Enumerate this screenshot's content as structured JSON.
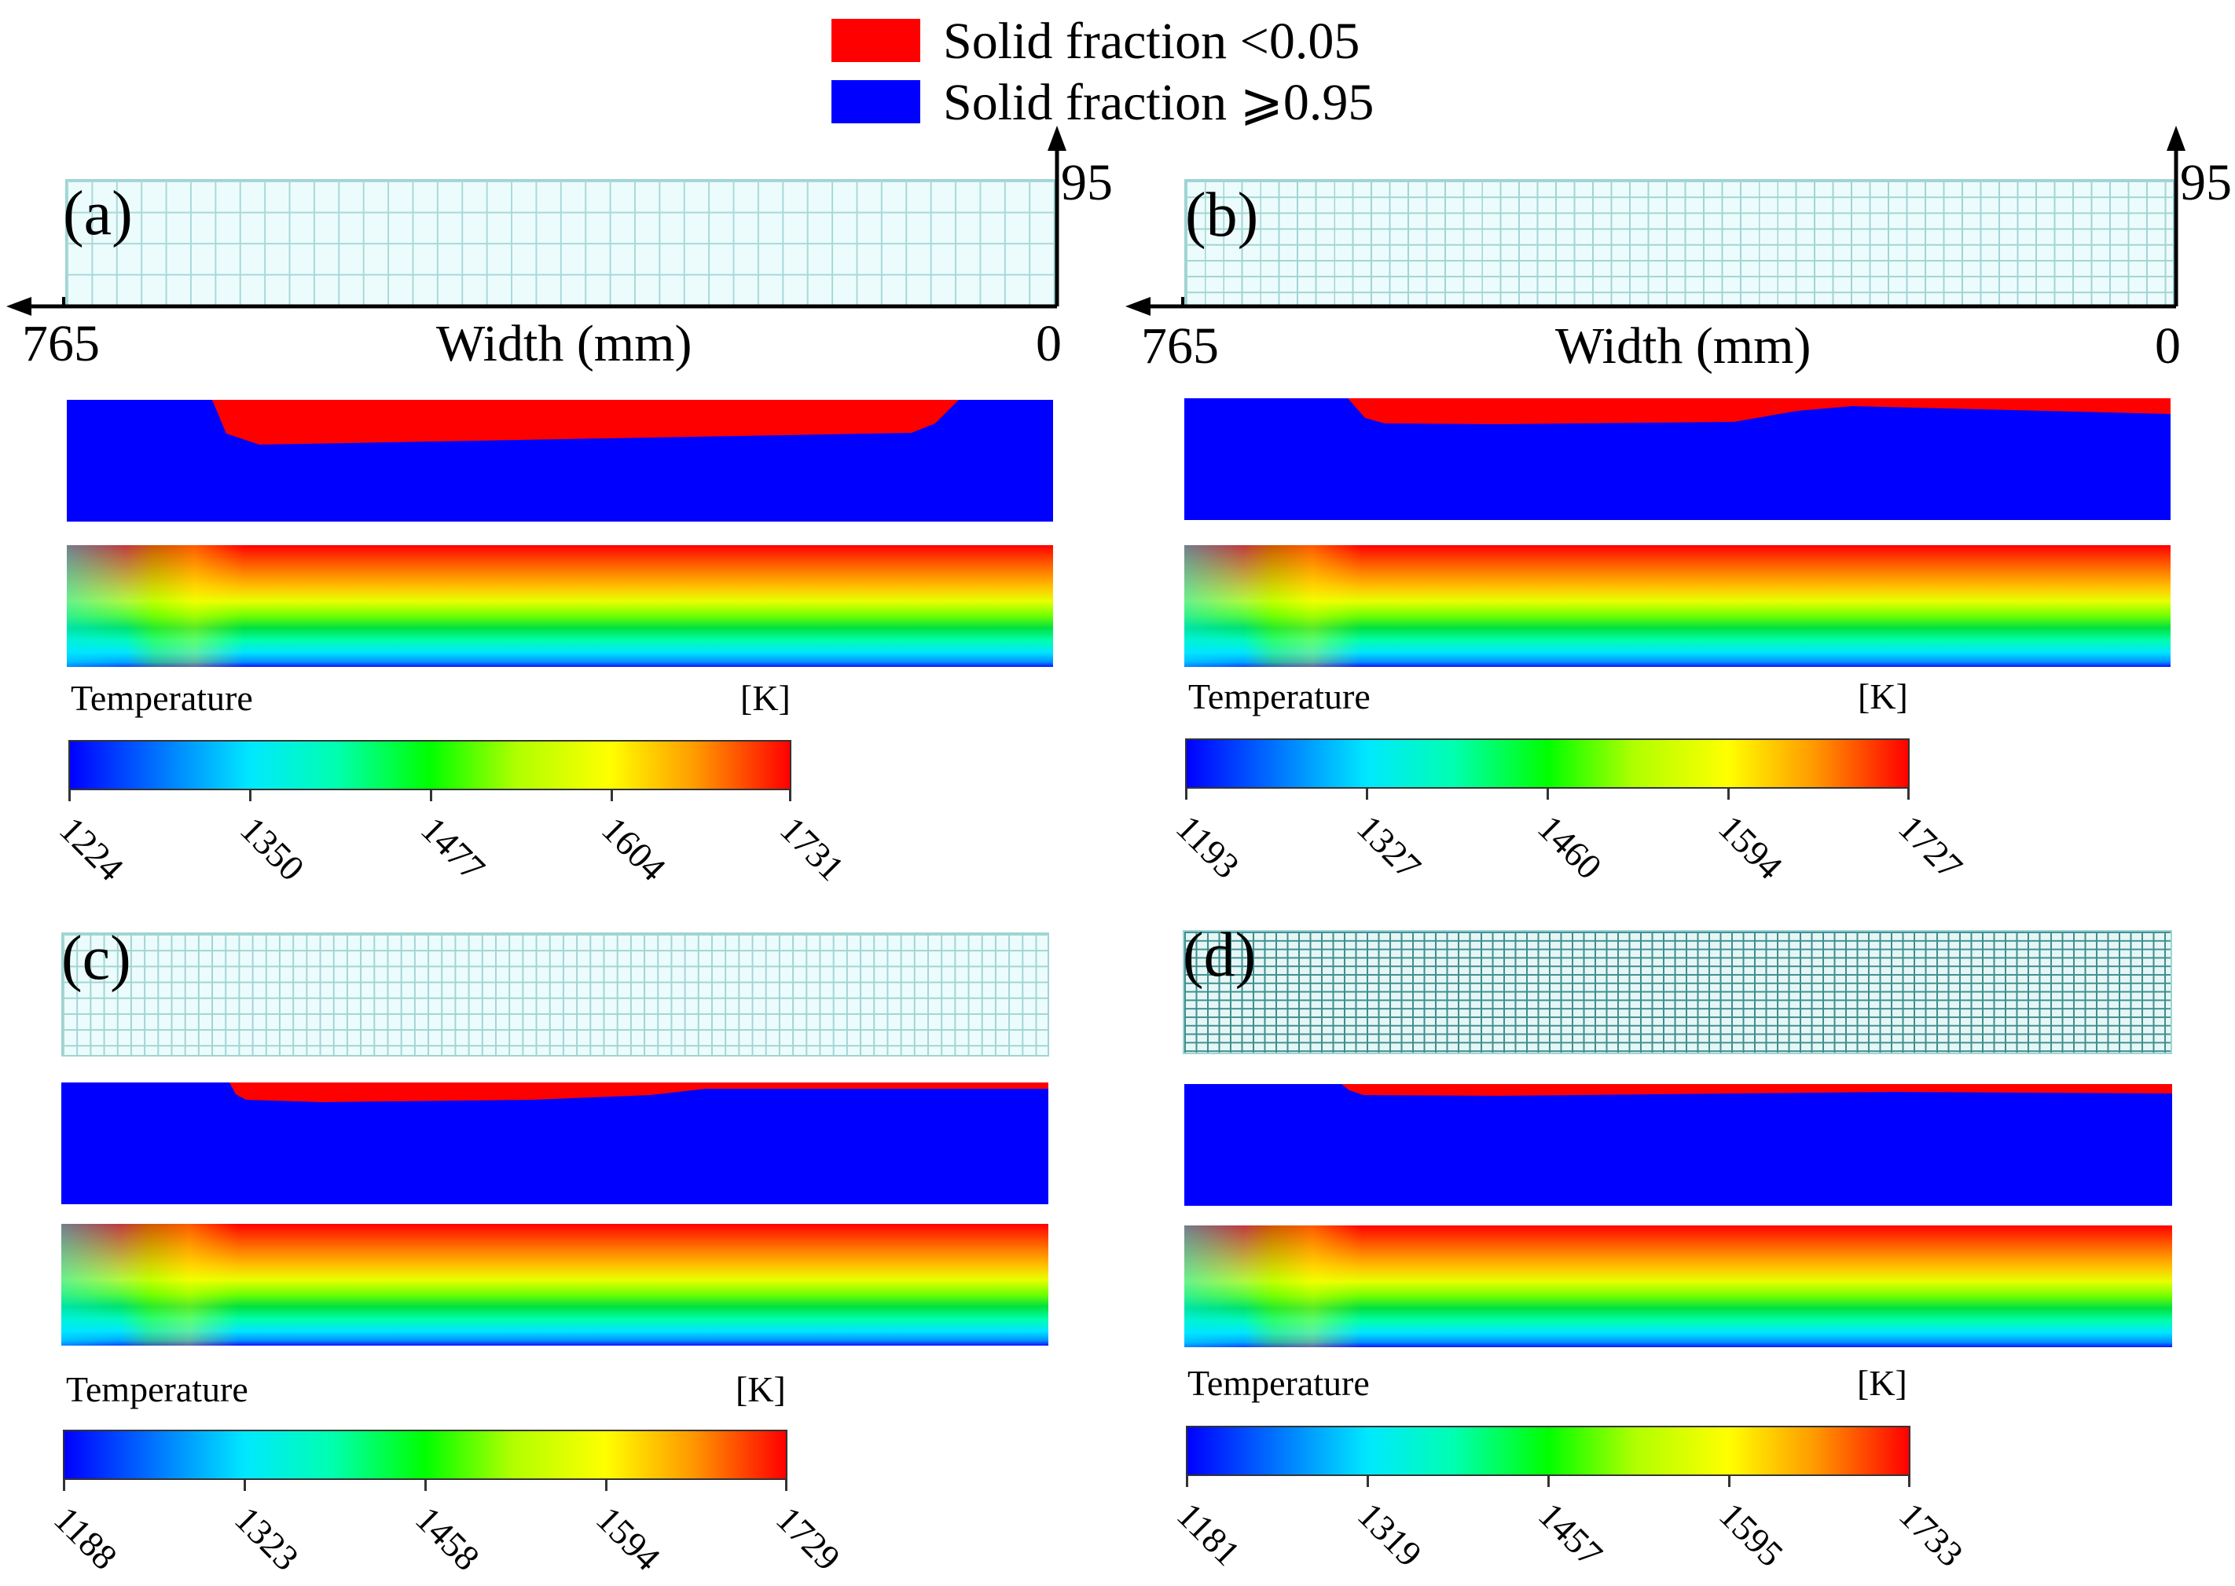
{
  "legend": {
    "items": [
      {
        "label": "Solid fraction <0.05",
        "color": "#ff0000"
      },
      {
        "label": "Solid fraction ⩾0.95",
        "color": "#0000ff"
      }
    ]
  },
  "axis": {
    "x_title": "Width (mm)",
    "x_left_value": "765",
    "x_right_value": "0",
    "y_top_value": "95"
  },
  "colors": {
    "liquid": "#ff0000",
    "solid": "#0000ff",
    "mesh_background": "#ecfcfc"
  },
  "panels": [
    {
      "label": "(a)",
      "temperature_title": "Temperature",
      "unit": "[K]",
      "colorbar_ticks": [
        "1224",
        "1350",
        "1477",
        "1604",
        "1731"
      ]
    },
    {
      "label": "(b)",
      "temperature_title": "Temperature",
      "unit": "[K]",
      "colorbar_ticks": [
        "1193",
        "1327",
        "1460",
        "1594",
        "1727"
      ]
    },
    {
      "label": "(c)",
      "temperature_title": "Temperature",
      "unit": "[K]",
      "colorbar_ticks": [
        "1188",
        "1323",
        "1458",
        "1594",
        "1729"
      ]
    },
    {
      "label": "(d)",
      "temperature_title": "Temperature",
      "unit": "[K]",
      "colorbar_ticks": [
        "1181",
        "1319",
        "1457",
        "1595",
        "1733"
      ]
    }
  ]
}
